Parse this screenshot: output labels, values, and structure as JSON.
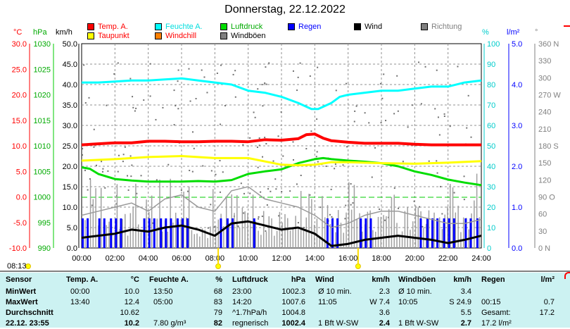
{
  "title": "Donnerstag, 22.12.2022",
  "legend": [
    {
      "label": "Temp. A.",
      "color": "#ff0000"
    },
    {
      "label": "Feuchte A.",
      "color": "#00ffff"
    },
    {
      "label": "Luftdruck",
      "color": "#00dd00"
    },
    {
      "label": "Regen",
      "color": "#0000ff"
    },
    {
      "label": "Wind",
      "color": "#000000"
    },
    {
      "label": "Richtung",
      "color": "#808080"
    },
    {
      "label": "Taupunkt",
      "color": "#ffff00"
    },
    {
      "label": "Windchill",
      "color": "#ff8000"
    },
    {
      "label": "Windböen",
      "color": "#808080"
    }
  ],
  "axis_units": {
    "temp": "°C",
    "pressure": "hPa",
    "wind": "km/h",
    "humidity": "%",
    "rain": "l/m²",
    "direction": "°"
  },
  "chart_data": {
    "type": "line",
    "x": [
      "00:00",
      "02:00",
      "04:00",
      "06:00",
      "08:00",
      "10:00",
      "12:00",
      "14:00",
      "16:00",
      "18:00",
      "20:00",
      "22:00",
      "24:00"
    ],
    "axes": {
      "temp": {
        "ticks": [
          "30.0",
          "25.0",
          "20.0",
          "15.0",
          "10.0",
          "5.0",
          "0.0",
          "-5.0",
          "-10.0"
        ],
        "range": [
          -10,
          30
        ]
      },
      "pressure": {
        "ticks": [
          "1030",
          "1025",
          "1020",
          "1015",
          "1010",
          "1005",
          "1000",
          "995",
          "990"
        ],
        "range": [
          990,
          1030
        ]
      },
      "wind": {
        "ticks": [
          "50.0",
          "45.0",
          "40.0",
          "35.0",
          "30.0",
          "25.0",
          "20.0",
          "15.0",
          "10.0",
          "5.0",
          "0.0"
        ],
        "range": [
          0,
          50
        ]
      },
      "humidity": {
        "ticks": [
          "100",
          "90",
          "80",
          "70",
          "60",
          "50",
          "40",
          "30",
          "20",
          "10",
          "0"
        ],
        "range": [
          0,
          100
        ]
      },
      "rain": {
        "ticks": [
          "5.0",
          "4.0",
          "3.0",
          "2.0",
          "1.0",
          "0.0"
        ],
        "range": [
          0,
          5
        ]
      },
      "direction": {
        "ticks": [
          "360 N",
          "330",
          "300",
          "270 W",
          "240",
          "210",
          "180 S",
          "150",
          "120",
          "90 O",
          "60",
          "30",
          "0 N"
        ],
        "range": [
          0,
          360
        ]
      }
    },
    "series": [
      {
        "name": "Temp. A.",
        "color": "#ff0000",
        "axis": "temp",
        "points": [
          [
            0,
            10.2
          ],
          [
            1,
            10.4
          ],
          [
            2,
            10.6
          ],
          [
            3,
            10.6
          ],
          [
            4,
            10.9
          ],
          [
            5,
            10.9
          ],
          [
            6,
            10.8
          ],
          [
            7,
            10.8
          ],
          [
            8,
            10.9
          ],
          [
            9,
            10.9
          ],
          [
            10,
            10.8
          ],
          [
            11,
            11.2
          ],
          [
            12,
            11.1
          ],
          [
            13,
            11.4
          ],
          [
            13.5,
            12.2
          ],
          [
            14,
            12.3
          ],
          [
            14.5,
            11.5
          ],
          [
            15,
            11.0
          ],
          [
            16,
            10.7
          ],
          [
            17,
            10.5
          ],
          [
            18,
            10.5
          ],
          [
            19,
            10.5
          ],
          [
            20,
            10.3
          ],
          [
            21,
            10.2
          ],
          [
            22,
            10.2
          ],
          [
            23,
            10.2
          ],
          [
            24,
            10.2
          ]
        ]
      },
      {
        "name": "Feuchte A.",
        "color": "#00ffff",
        "axis": "humidity",
        "points": [
          [
            0,
            81
          ],
          [
            1,
            81
          ],
          [
            2,
            81.5
          ],
          [
            3,
            82
          ],
          [
            4,
            82
          ],
          [
            5,
            82.5
          ],
          [
            6,
            83
          ],
          [
            7,
            82
          ],
          [
            8,
            81
          ],
          [
            9,
            80
          ],
          [
            10,
            77
          ],
          [
            11,
            76
          ],
          [
            12,
            74
          ],
          [
            13,
            71
          ],
          [
            13.8,
            68
          ],
          [
            14.2,
            68
          ],
          [
            15,
            71
          ],
          [
            15.5,
            74
          ],
          [
            16,
            75
          ],
          [
            17,
            76
          ],
          [
            18,
            77
          ],
          [
            19,
            77
          ],
          [
            20,
            78
          ],
          [
            21,
            79
          ],
          [
            22,
            79
          ],
          [
            23,
            81
          ],
          [
            24,
            82
          ]
        ]
      },
      {
        "name": "Luftdruck",
        "color": "#00dd00",
        "axis": "pressure",
        "points": [
          [
            0,
            1005.8
          ],
          [
            0.5,
            1005.5
          ],
          [
            1,
            1004.5
          ],
          [
            2,
            1003.5
          ],
          [
            3,
            1003.2
          ],
          [
            4,
            1003.0
          ],
          [
            5,
            1003.0
          ],
          [
            6,
            1003.0
          ],
          [
            7,
            1003.1
          ],
          [
            8,
            1003.0
          ],
          [
            9,
            1003.3
          ],
          [
            10,
            1004.5
          ],
          [
            11,
            1005.0
          ],
          [
            12,
            1005.4
          ],
          [
            13,
            1006.6
          ],
          [
            14,
            1007.4
          ],
          [
            14.5,
            1007.6
          ],
          [
            15,
            1007.4
          ],
          [
            16,
            1007.1
          ],
          [
            17,
            1006.9
          ],
          [
            18,
            1006.6
          ],
          [
            19,
            1006.0
          ],
          [
            20,
            1005.0
          ],
          [
            21,
            1004.3
          ],
          [
            22,
            1003.4
          ],
          [
            23,
            1002.8
          ],
          [
            24,
            1002.3
          ]
        ]
      },
      {
        "name": "Taupunkt",
        "color": "#ffff00",
        "axis": "temp",
        "points": [
          [
            0,
            7.1
          ],
          [
            2,
            7.4
          ],
          [
            4,
            7.8
          ],
          [
            6,
            8.0
          ],
          [
            8,
            7.6
          ],
          [
            10,
            7.6
          ],
          [
            12,
            6.3
          ],
          [
            13,
            6.2
          ],
          [
            14,
            6.3
          ],
          [
            15,
            6.8
          ],
          [
            16,
            6.8
          ],
          [
            18,
            6.6
          ],
          [
            20,
            6.5
          ],
          [
            22,
            6.7
          ],
          [
            24,
            7.0
          ]
        ]
      },
      {
        "name": "Wind",
        "color": "#000000",
        "axis": "wind",
        "points": [
          [
            0,
            2.5
          ],
          [
            1,
            3.0
          ],
          [
            2,
            3.5
          ],
          [
            3,
            4.5
          ],
          [
            4,
            4.0
          ],
          [
            5,
            5.0
          ],
          [
            6,
            5.5
          ],
          [
            7,
            4.5
          ],
          [
            8,
            3.0
          ],
          [
            9,
            6.0
          ],
          [
            10,
            6.5
          ],
          [
            11,
            5.5
          ],
          [
            12,
            4.5
          ],
          [
            13,
            5.0
          ],
          [
            14,
            3.5
          ],
          [
            15,
            0.5
          ],
          [
            16,
            1.0
          ],
          [
            17,
            2.0
          ],
          [
            18,
            2.5
          ],
          [
            19,
            3.0
          ],
          [
            20,
            2.5
          ],
          [
            21,
            2.0
          ],
          [
            22,
            1.2
          ],
          [
            23,
            2.0
          ],
          [
            24,
            3.0
          ]
        ]
      },
      {
        "name": "Windböen",
        "color": "#808080",
        "axis": "wind",
        "points": [
          [
            0,
            8
          ],
          [
            1,
            9
          ],
          [
            2,
            10
          ],
          [
            3,
            11
          ],
          [
            4,
            9
          ],
          [
            5,
            12
          ],
          [
            6,
            13
          ],
          [
            7,
            10
          ],
          [
            8,
            9
          ],
          [
            9,
            14
          ],
          [
            10,
            15
          ],
          [
            11,
            12
          ],
          [
            12,
            11
          ],
          [
            13,
            10
          ],
          [
            14,
            8
          ],
          [
            15,
            5
          ],
          [
            16,
            6
          ],
          [
            17,
            8
          ],
          [
            18,
            9
          ],
          [
            19,
            9
          ],
          [
            20,
            8
          ],
          [
            21,
            7
          ],
          [
            22,
            6
          ],
          [
            23,
            6
          ],
          [
            24,
            7
          ]
        ]
      }
    ],
    "rain_hours": [
      0,
      0.3,
      1,
      1.3,
      1.7,
      2,
      2.3,
      3.7,
      4,
      4.3,
      4.7,
      5,
      5.3,
      5.7,
      6,
      6.3,
      8.3,
      8.7,
      9,
      10.3,
      14.7,
      15,
      15.3,
      16.7,
      17,
      17.3,
      20.3,
      20.7,
      21,
      21.3,
      21.7,
      22,
      22.3,
      23,
      23.3,
      23.7
    ]
  },
  "timeline": {
    "time_label": "08:13"
  },
  "stats": {
    "headers": {
      "sensor": "Sensor",
      "temp": "Temp. A.",
      "temp_unit": "°C",
      "hum": "Feuchte A.",
      "hum_unit": "%",
      "press": "Luftdruck",
      "press_unit": "hPa",
      "wind": "Wind",
      "wind_unit": "km/h",
      "gust": "Windböen",
      "gust_unit": "km/h",
      "rain": "Regen",
      "rain_unit": "l/m²"
    },
    "rows": [
      {
        "label": "MinWert",
        "temp_time": "00:00",
        "temp_val": "10.0",
        "hum_time": "13:50",
        "hum_val": "68",
        "press_time": "23:00",
        "press_val": "1002.3",
        "wind_time": "Ø 10 min.",
        "wind_val": "2.3",
        "gust_time": "Ø 10 min.",
        "gust_val": "3.4",
        "rain_time": "",
        "rain_val": ""
      },
      {
        "label": "MaxWert",
        "temp_time": "13:40",
        "temp_val": "12.4",
        "hum_time": "05:00",
        "hum_val": "83",
        "press_time": "14:20",
        "press_val": "1007.6",
        "wind_time": "11:05",
        "wind_val": "W 7.4",
        "gust_time": "10:05",
        "gust_val": "S 24.9",
        "rain_time": "00:15",
        "rain_val": "0.7"
      },
      {
        "label": "Durchschnitt",
        "temp_time": "",
        "temp_val": "10.62",
        "hum_time": "",
        "hum_val": "79",
        "press_time": "^1.7hPa/h",
        "press_val": "1004.8",
        "wind_time": "",
        "wind_val": "3.6",
        "gust_time": "",
        "gust_val": "5.5",
        "rain_time": "Gesamt:",
        "rain_val": "17.2"
      },
      {
        "label": "22.12. 23:55",
        "temp_time": "",
        "temp_val": "10.2",
        "hum_time": "7.80 g/m³",
        "hum_val": "82",
        "press_time": "regnerisch",
        "press_val": "1002.4",
        "wind_time": "1 Bft W-SW",
        "wind_val": "2.4",
        "gust_time": "1 Bft W-SW",
        "gust_val": "2.7",
        "rain_time": "17.2 l/m²",
        "rain_val": ""
      }
    ]
  }
}
